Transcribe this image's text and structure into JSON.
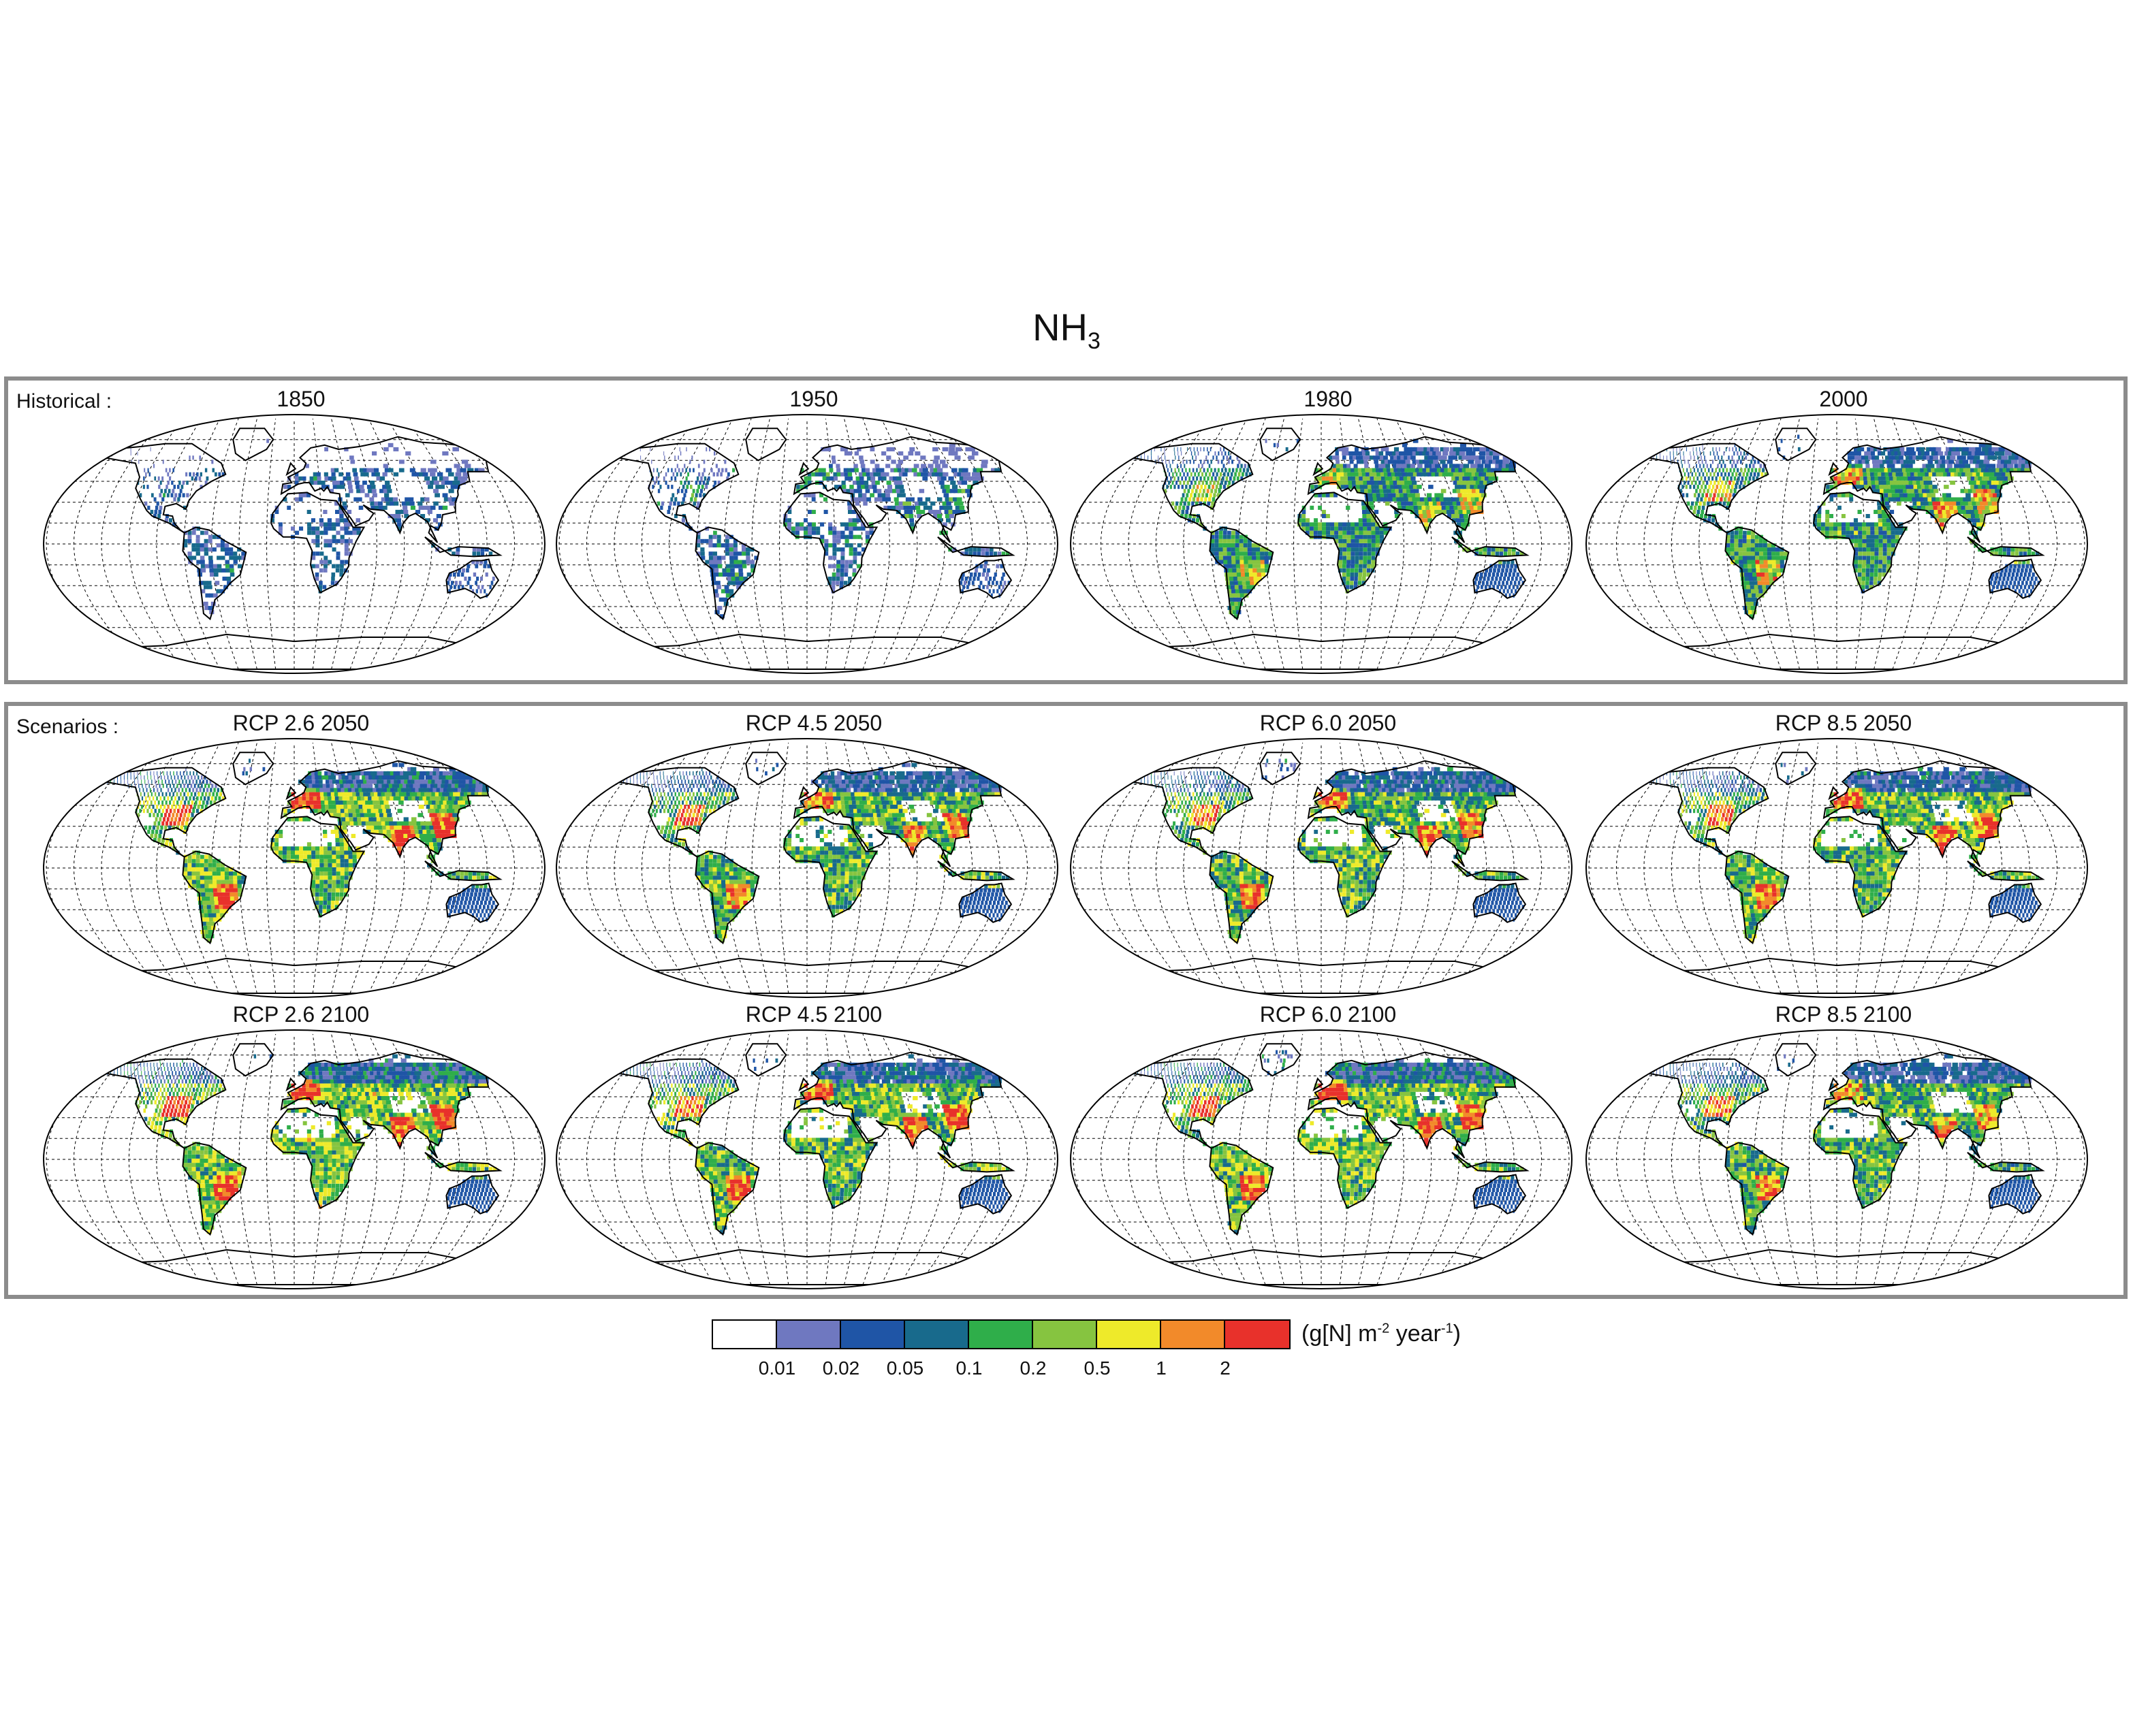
{
  "title": {
    "main": "NH",
    "sub": "3"
  },
  "groups": {
    "historical": {
      "label": "Historical :"
    },
    "scenarios": {
      "label": "Scenarios :"
    }
  },
  "panels": [
    {
      "id": "p1850",
      "title": "1850",
      "intensity": 0.1
    },
    {
      "id": "p1950",
      "title": "1950",
      "intensity": 0.22
    },
    {
      "id": "p1980",
      "title": "1980",
      "intensity": 0.55
    },
    {
      "id": "p2000",
      "title": "2000",
      "intensity": 0.62
    },
    {
      "id": "rcp26_2050",
      "title": "RCP 2.6 2050",
      "intensity": 0.8
    },
    {
      "id": "rcp45_2050",
      "title": "RCP 4.5 2050",
      "intensity": 0.72
    },
    {
      "id": "rcp60_2050",
      "title": "RCP 6.0 2050",
      "intensity": 0.74
    },
    {
      "id": "rcp85_2050",
      "title": "RCP 8.5 2050",
      "intensity": 0.76
    },
    {
      "id": "rcp26_2100",
      "title": "RCP 2.6 2100",
      "intensity": 0.84
    },
    {
      "id": "rcp45_2100",
      "title": "RCP 4.5 2100",
      "intensity": 0.78
    },
    {
      "id": "rcp60_2100",
      "title": "RCP 6.0 2100",
      "intensity": 0.82
    },
    {
      "id": "rcp85_2100",
      "title": "RCP 8.5 2100",
      "intensity": 0.7
    }
  ],
  "colorbar": {
    "colors": [
      "#ffffff",
      "#6f78c0",
      "#1f55a6",
      "#186a8c",
      "#2fae4a",
      "#86c440",
      "#eeea2a",
      "#f28a2a",
      "#e8312b"
    ],
    "ticks": [
      "0.01",
      "0.02",
      "0.05",
      "0.1",
      "0.2",
      "0.5",
      "1",
      "2"
    ],
    "unit": {
      "base": "(g[N] m",
      "exp1": "-2",
      "mid": " year",
      "exp2": "-1",
      "end": ")"
    }
  },
  "land_color": "#ffffff",
  "outline_color": "#000000"
}
